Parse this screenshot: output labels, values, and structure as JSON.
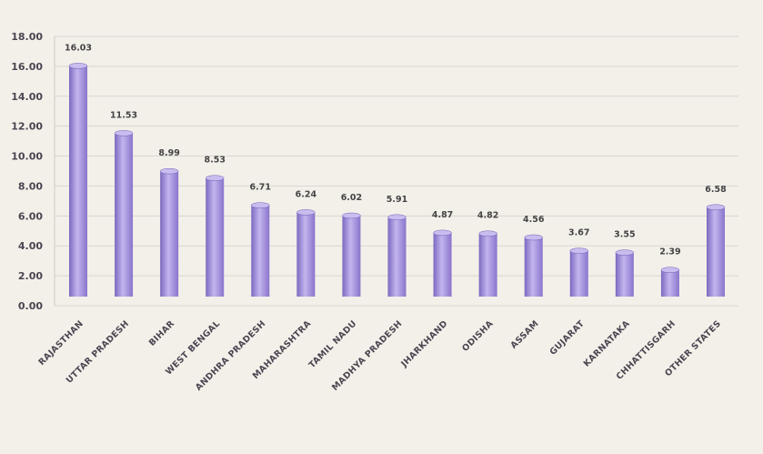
{
  "chart_data": {
    "type": "bar",
    "title": "",
    "xlabel": "",
    "ylabel": "",
    "ylim": [
      0,
      18
    ],
    "yticks": [
      "0.00",
      "2.00",
      "4.00",
      "6.00",
      "8.00",
      "10.00",
      "12.00",
      "14.00",
      "16.00",
      "18.00"
    ],
    "grid": true,
    "categories": [
      "RAJASTHAN",
      "UTTAR PRADESH",
      "BIHAR",
      "WEST BENGAL",
      "ANDHRA PRADESH",
      "MAHARASHTRA",
      "TAMIL NADU",
      "MADHYA PRADESH",
      "JHARKHAND",
      "ODISHA",
      "ASSAM",
      "GUJARAT",
      "KARNATAKA",
      "CHHATTISGARH",
      "OTHER STATES"
    ],
    "values": [
      16.03,
      11.53,
      8.99,
      8.53,
      6.71,
      6.24,
      6.02,
      5.91,
      4.87,
      4.82,
      4.56,
      3.67,
      3.55,
      2.39,
      6.58
    ],
    "value_labels": [
      "16.03",
      "11.53",
      "8.99",
      "8.53",
      "6.71",
      "6.24",
      "6.02",
      "5.91",
      "4.87",
      "4.82",
      "4.56",
      "3.67",
      "3.55",
      "2.39",
      "6.58"
    ],
    "colors": {
      "bar": "#9b86d6",
      "bar_light": "#c9bdf0",
      "bar_dark": "#6f5bb0",
      "grid": "#d9d6cf",
      "background": "#f3f0ea"
    }
  }
}
